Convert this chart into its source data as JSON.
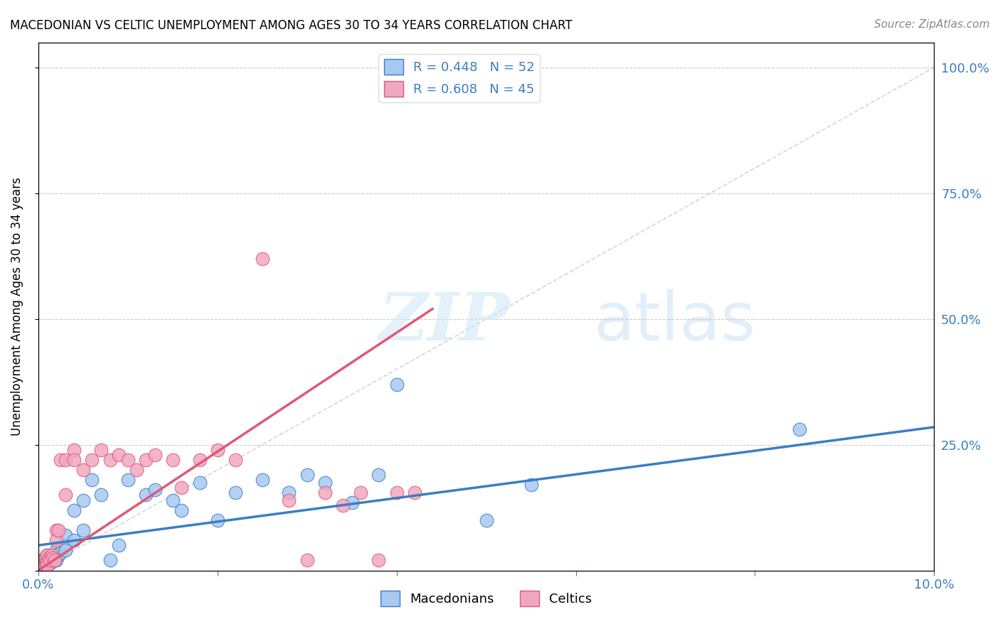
{
  "title": "MACEDONIAN VS CELTIC UNEMPLOYMENT AMONG AGES 30 TO 34 YEARS CORRELATION CHART",
  "source": "Source: ZipAtlas.com",
  "ylabel": "Unemployment Among Ages 30 to 34 years",
  "xlim": [
    0.0,
    0.1
  ],
  "ylim": [
    0.0,
    1.05
  ],
  "x_ticks": [
    0.0,
    0.02,
    0.04,
    0.06,
    0.08,
    0.1
  ],
  "x_tick_labels": [
    "0.0%",
    "",
    "",
    "",
    "",
    "10.0%"
  ],
  "y_ticks": [
    0.0,
    0.25,
    0.5,
    0.75,
    1.0
  ],
  "y_tick_labels": [
    "",
    "25.0%",
    "50.0%",
    "75.0%",
    "100.0%"
  ],
  "macedonian_color": "#a8c8f0",
  "celtic_color": "#f0a8c0",
  "macedonian_line_color": "#3a7fc1",
  "celtic_line_color": "#e05878",
  "diag_line_color": "#cccccc",
  "legend_label_mac": "R = 0.448   N = 52",
  "legend_label_cel": "R = 0.608   N = 45",
  "watermark_zip": "ZIP",
  "watermark_atlas": "atlas",
  "mac_r": "0.448",
  "mac_n": "52",
  "cel_r": "0.608",
  "cel_n": "45",
  "macedonian_x": [
    0.0003,
    0.0004,
    0.0005,
    0.0006,
    0.0007,
    0.0008,
    0.0009,
    0.001,
    0.001,
    0.001,
    0.001,
    0.0012,
    0.0013,
    0.0014,
    0.0015,
    0.0016,
    0.0017,
    0.0018,
    0.002,
    0.002,
    0.002,
    0.0022,
    0.0025,
    0.003,
    0.003,
    0.003,
    0.004,
    0.004,
    0.005,
    0.005,
    0.006,
    0.007,
    0.008,
    0.009,
    0.01,
    0.012,
    0.013,
    0.015,
    0.016,
    0.018,
    0.02,
    0.022,
    0.025,
    0.028,
    0.03,
    0.032,
    0.035,
    0.038,
    0.04,
    0.05,
    0.055,
    0.085
  ],
  "macedonian_y": [
    0.02,
    0.01,
    0.015,
    0.01,
    0.02,
    0.01,
    0.015,
    0.02,
    0.03,
    0.01,
    0.02,
    0.025,
    0.02,
    0.015,
    0.02,
    0.025,
    0.03,
    0.02,
    0.04,
    0.03,
    0.02,
    0.03,
    0.035,
    0.05,
    0.07,
    0.04,
    0.12,
    0.06,
    0.14,
    0.08,
    0.18,
    0.15,
    0.02,
    0.05,
    0.18,
    0.15,
    0.16,
    0.14,
    0.12,
    0.175,
    0.1,
    0.155,
    0.18,
    0.155,
    0.19,
    0.175,
    0.135,
    0.19,
    0.37,
    0.1,
    0.17,
    0.28
  ],
  "celtic_x": [
    0.0003,
    0.0004,
    0.0005,
    0.0006,
    0.0008,
    0.0009,
    0.001,
    0.001,
    0.001,
    0.0012,
    0.0013,
    0.0015,
    0.0016,
    0.0018,
    0.002,
    0.002,
    0.0022,
    0.0025,
    0.003,
    0.003,
    0.004,
    0.004,
    0.005,
    0.006,
    0.007,
    0.008,
    0.009,
    0.01,
    0.011,
    0.012,
    0.013,
    0.015,
    0.016,
    0.018,
    0.02,
    0.022,
    0.025,
    0.028,
    0.03,
    0.032,
    0.034,
    0.036,
    0.038,
    0.04,
    0.042
  ],
  "celtic_y": [
    0.01,
    0.015,
    0.02,
    0.01,
    0.025,
    0.015,
    0.02,
    0.03,
    0.01,
    0.025,
    0.02,
    0.03,
    0.025,
    0.02,
    0.08,
    0.06,
    0.08,
    0.22,
    0.22,
    0.15,
    0.24,
    0.22,
    0.2,
    0.22,
    0.24,
    0.22,
    0.23,
    0.22,
    0.2,
    0.22,
    0.23,
    0.22,
    0.165,
    0.22,
    0.24,
    0.22,
    0.62,
    0.14,
    0.02,
    0.155,
    0.13,
    0.155,
    0.02,
    0.155,
    0.155
  ],
  "mac_line_x0": 0.0,
  "mac_line_y0": 0.05,
  "mac_line_x1": 0.1,
  "mac_line_y1": 0.285,
  "cel_line_x0": 0.0,
  "cel_line_y0": 0.0,
  "cel_line_x1": 0.044,
  "cel_line_y1": 0.52
}
